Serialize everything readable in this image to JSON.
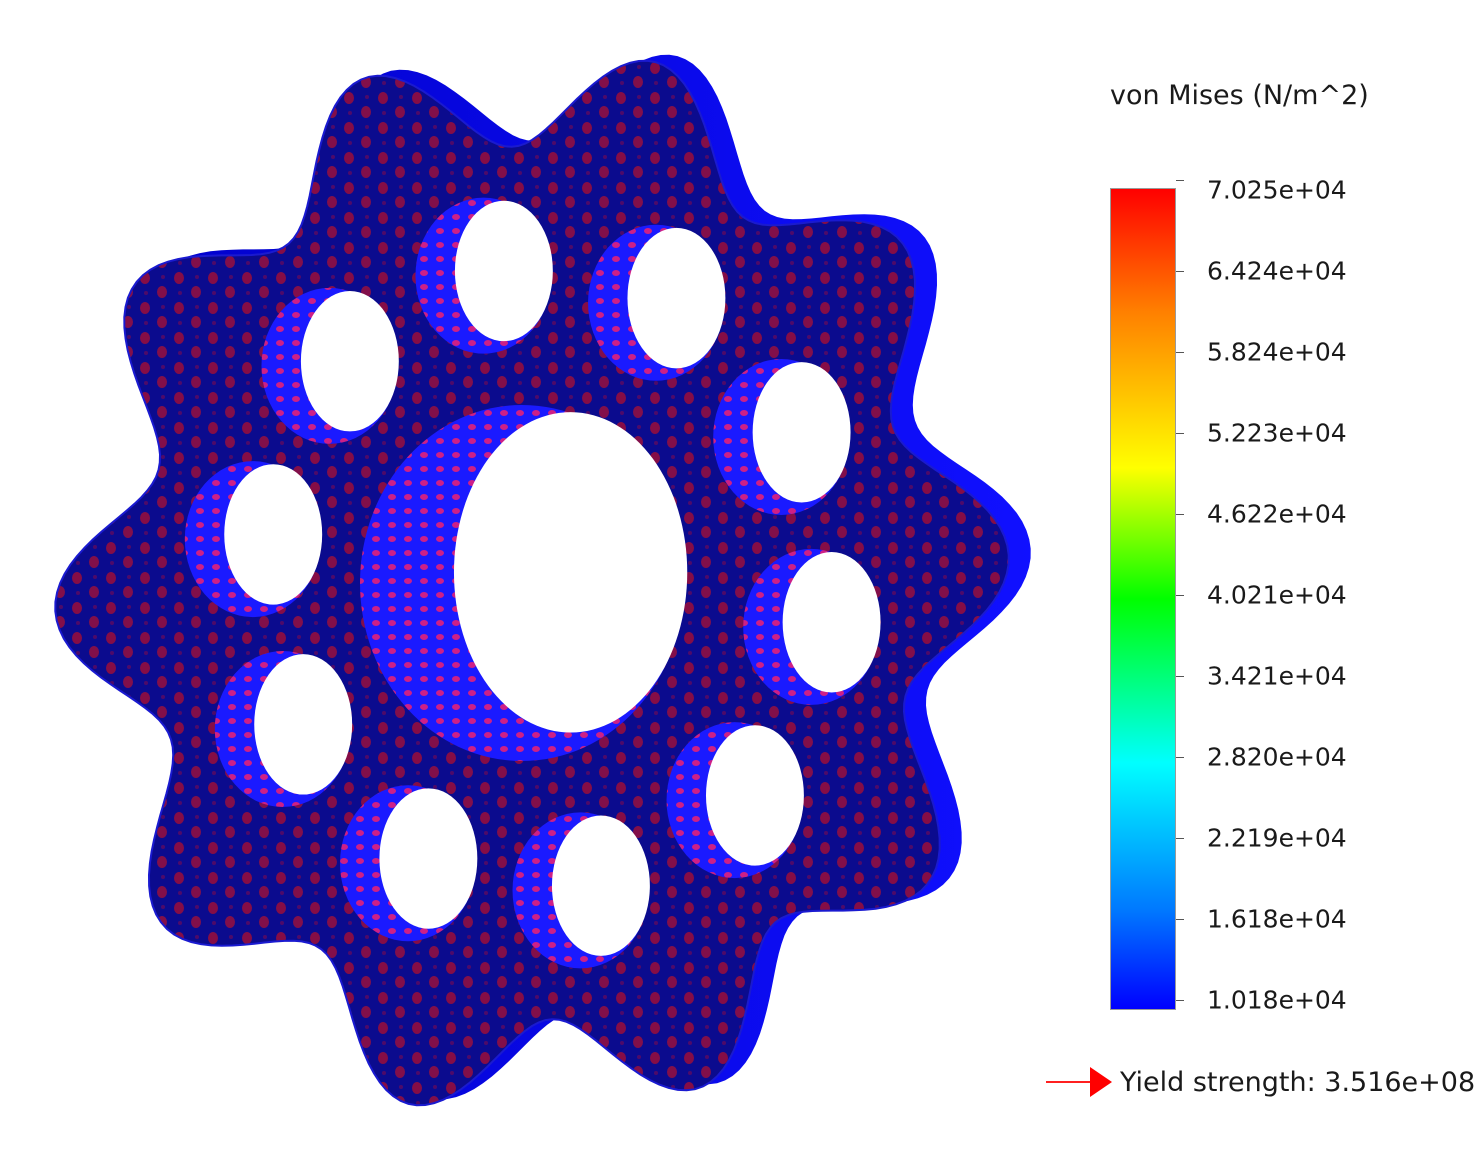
{
  "legend": {
    "title": "von Mises (N/m^2)",
    "ticks": [
      "7.025e+04",
      "6.424e+04",
      "5.824e+04",
      "5.223e+04",
      "4.622e+04",
      "4.021e+04",
      "3.421e+04",
      "2.820e+04",
      "2.219e+04",
      "1.618e+04",
      "1.018e+04"
    ],
    "colors": {
      "max": "#ff0000",
      "mid": "#00ff00",
      "min": "#0000ff"
    }
  },
  "yield": {
    "label": "Yield strength: 3.516e+08",
    "arrow_color": "#ff0000"
  },
  "model": {
    "part": "lobed-disc-with-bolt-holes",
    "lobe_count": 10,
    "bolt_hole_count": 10,
    "base_color": "#0b0b8e",
    "edge_color": "#1010ff",
    "hotspot_color": "#b01020"
  }
}
